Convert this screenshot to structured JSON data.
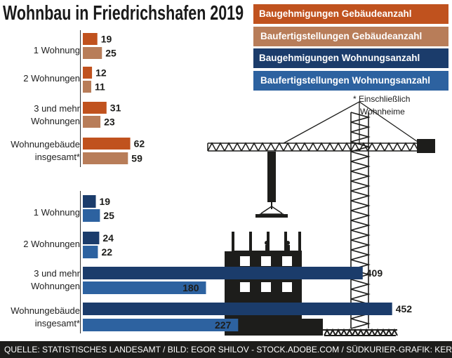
{
  "title": "Wohnbau in Friedrichshafen 2019",
  "note_line1": "* Einschließlich",
  "note_line2": "Wohnheime",
  "footer": "QUELLE: STATISTISCHES LANDESAMT / BILD: EGOR SHILOV - STOCK.ADOBE.COM / SÜDKURIER-GRAFIK: KERSTAN",
  "colors": {
    "baugeh_gebaeude": "#c0521e",
    "baufert_gebaeude": "#b87d59",
    "baugeh_wohnungen": "#1b3c6b",
    "baufert_wohnungen": "#2d62a0",
    "silhouette": "#1d1d1b"
  },
  "chart_data": [
    {
      "type": "bar",
      "orientation": "horizontal",
      "categories": [
        "1 Wohnung",
        "2 Wohnungen",
        "3 und mehr Wohnungen",
        "Wohnungebäude insgesamt*"
      ],
      "series": [
        {
          "name": "Baugehmigungen Gebäudeanzahl",
          "values": [
            19,
            12,
            31,
            62
          ]
        },
        {
          "name": "Baufertigstellungen Gebäudeanzahl",
          "values": [
            25,
            11,
            23,
            59
          ]
        }
      ]
    },
    {
      "type": "bar",
      "orientation": "horizontal",
      "categories": [
        "1 Wohnung",
        "2 Wohnungen",
        "3 und mehr Wohnungen",
        "Wohnungebäude insgesamt*"
      ],
      "series": [
        {
          "name": "Baugehmigungen Wohnungsanzahl",
          "values": [
            19,
            24,
            409,
            452
          ]
        },
        {
          "name": "Baufertigstellungen Wohnungsanzahl",
          "values": [
            25,
            22,
            180,
            227
          ]
        }
      ]
    }
  ]
}
